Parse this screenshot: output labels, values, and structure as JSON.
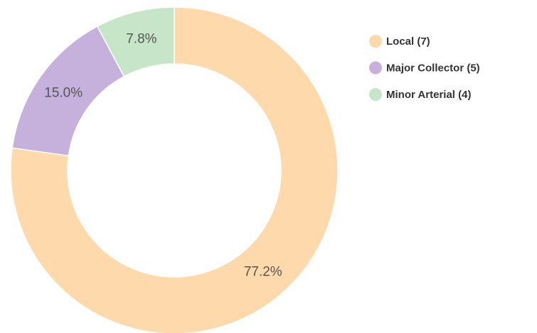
{
  "chart_data": {
    "type": "pie",
    "categories": [
      "Local (7)",
      "Major Collector (5)",
      "Minor Arterial (4)"
    ],
    "values": [
      77.2,
      15.0,
      7.8
    ],
    "value_labels": [
      "77.2%",
      "15.0%",
      "7.8%"
    ],
    "colors": [
      "#fdd9ab",
      "#c6b1dc",
      "#c7e5c8"
    ],
    "donut": true,
    "legend": "right"
  }
}
